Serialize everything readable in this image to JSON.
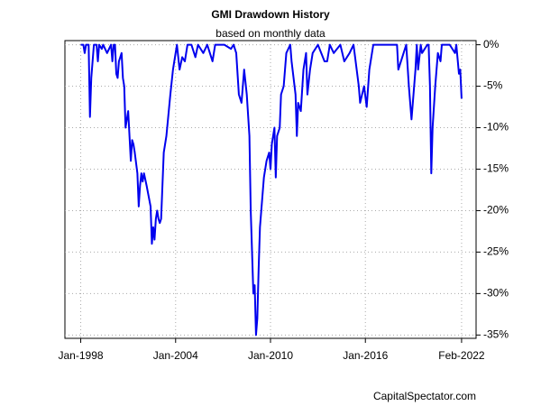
{
  "chart_data": {
    "type": "line",
    "title": "GMI Drawdown History",
    "subtitle": "based on monthly data",
    "credit": "CapitalSpectator.com",
    "x": [
      "1998-01",
      "1998-03",
      "1998-04",
      "1998-05",
      "1998-07",
      "1998-08",
      "1998-09",
      "1998-10",
      "1998-11",
      "1999-01",
      "1999-02",
      "1999-03",
      "1999-05",
      "1999-06",
      "1999-09",
      "1999-12",
      "2000-01",
      "2000-02",
      "2000-03",
      "2000-04",
      "2000-05",
      "2000-06",
      "2000-08",
      "2000-09",
      "2000-10",
      "2000-11",
      "2000-12",
      "2001-01",
      "2001-02",
      "2001-03",
      "2001-04",
      "2001-05",
      "2001-06",
      "2001-08",
      "2001-09",
      "2001-10",
      "2001-11",
      "2001-12",
      "2002-01",
      "2002-03",
      "2002-06",
      "2002-07",
      "2002-08",
      "2002-09",
      "2002-10",
      "2002-11",
      "2002-12",
      "2003-01",
      "2003-02",
      "2003-03",
      "2003-04",
      "2003-06",
      "2003-09",
      "2003-11",
      "2004-01",
      "2004-02",
      "2004-04",
      "2004-06",
      "2004-08",
      "2004-10",
      "2005-01",
      "2005-04",
      "2005-06",
      "2005-10",
      "2006-01",
      "2006-05",
      "2006-07",
      "2007-02",
      "2007-07",
      "2007-09",
      "2007-11",
      "2008-01",
      "2008-03",
      "2008-05",
      "2008-07",
      "2008-09",
      "2008-10",
      "2008-11",
      "2008-12",
      "2009-01",
      "2009-02",
      "2009-03",
      "2009-04",
      "2009-05",
      "2009-06",
      "2009-08",
      "2009-10",
      "2009-12",
      "2010-01",
      "2010-02",
      "2010-04",
      "2010-05",
      "2010-06",
      "2010-08",
      "2010-09",
      "2010-11",
      "2011-01",
      "2011-04",
      "2011-05",
      "2011-08",
      "2011-09",
      "2011-10",
      "2011-12",
      "2012-02",
      "2012-04",
      "2012-05",
      "2012-07",
      "2012-09",
      "2013-01",
      "2013-06",
      "2013-08",
      "2013-10",
      "2014-01",
      "2014-06",
      "2014-09",
      "2015-01",
      "2015-04",
      "2015-08",
      "2015-09",
      "2015-12",
      "2016-02",
      "2016-04",
      "2016-07",
      "2017-01",
      "2018-01",
      "2018-02",
      "2018-08",
      "2018-10",
      "2018-12",
      "2019-03",
      "2019-04",
      "2019-05",
      "2019-07",
      "2019-08",
      "2019-12",
      "2020-01",
      "2020-02",
      "2020-03",
      "2020-04",
      "2020-06",
      "2020-08",
      "2020-10",
      "2020-11",
      "2021-03",
      "2021-05",
      "2021-09",
      "2021-10",
      "2021-12",
      "2022-01",
      "2022-02"
    ],
    "series": [
      {
        "name": "GMI drawdown",
        "color": "#0000ee",
        "values": [
          0,
          0,
          -1,
          0,
          0,
          -8.7,
          -4,
          -2,
          0,
          0,
          -2,
          0,
          -0.5,
          0,
          -1,
          0,
          -2,
          0,
          0,
          -3.5,
          -4,
          -2,
          -1,
          -4,
          -5,
          -10,
          -9,
          -8,
          -11,
          -14,
          -11.5,
          -12,
          -13,
          -15.5,
          -19.5,
          -17,
          -15.5,
          -16.5,
          -15.5,
          -17,
          -19.5,
          -24,
          -22,
          -23.5,
          -21,
          -20,
          -21,
          -21.5,
          -21,
          -17,
          -13,
          -11,
          -6,
          -3,
          -1,
          0,
          -3,
          -1.5,
          -2,
          0,
          0,
          -1.5,
          0,
          -1,
          0,
          -2,
          0,
          0,
          -0.5,
          0,
          -1,
          -6,
          -7,
          -3,
          -6,
          -11,
          -20,
          -25,
          -30,
          -29,
          -35,
          -33,
          -27,
          -22,
          -20,
          -16,
          -14,
          -13,
          -15,
          -12,
          -10,
          -16,
          -11,
          -10,
          -6,
          -5,
          -1,
          0,
          -2,
          -6,
          -11,
          -7,
          -8,
          -3,
          -1,
          -6,
          -3,
          -1,
          0,
          -2,
          -2,
          0,
          -1,
          0,
          -2,
          -1,
          0,
          -5,
          -7,
          -5,
          -7.5,
          -3,
          0,
          0,
          0,
          -3,
          0,
          -5,
          -9,
          -3,
          0,
          -3,
          0,
          -1,
          0,
          0,
          -5,
          -15.5,
          -10,
          -5,
          -1,
          -2,
          0,
          0,
          0,
          -1,
          0,
          -3.5,
          -3,
          -6.5
        ]
      }
    ],
    "xlim": [
      "1997-01",
      "2023-01"
    ],
    "xticks": [
      {
        "value": "1998-01",
        "label": "Jan-1998"
      },
      {
        "value": "2004-01",
        "label": "Jan-2004"
      },
      {
        "value": "2010-01",
        "label": "Jan-2010"
      },
      {
        "value": "2016-01",
        "label": "Jan-2016"
      },
      {
        "value": "2022-02",
        "label": "Feb-2022"
      }
    ],
    "ylim": [
      -35.4,
      0.5
    ],
    "yticks": [
      {
        "value": 0,
        "label": "0%"
      },
      {
        "value": -5,
        "label": "-5%"
      },
      {
        "value": -10,
        "label": "-10%"
      },
      {
        "value": -15,
        "label": "-15%"
      },
      {
        "value": -20,
        "label": "-20%"
      },
      {
        "value": -25,
        "label": "-25%"
      },
      {
        "value": -30,
        "label": "-30%"
      },
      {
        "value": -35,
        "label": "-35%"
      }
    ],
    "grid": true
  }
}
